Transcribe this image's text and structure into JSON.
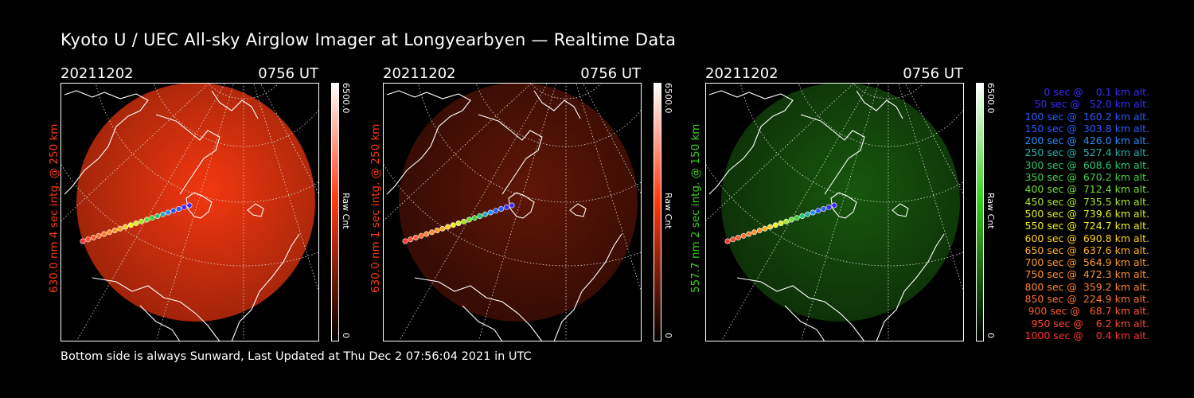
{
  "title": "Kyoto U / UEC All-sky Airglow Imager at Longyearbyen — Realtime Data",
  "footer": "Bottom side is always Sunward, Last Updated at Thu Dec  2 07:56:04 2021 in UTC",
  "panels": [
    {
      "date": "20211202",
      "time": "0756 UT",
      "side_label": "630.0 nm  4 sec intg. @ 250 km",
      "color": "#ff3a10",
      "brightness": 0.85,
      "colorbar_max": "6500.0",
      "colorbar_min": "0",
      "colorbar_label": "Raw Cnt"
    },
    {
      "date": "20211202",
      "time": "0756 UT",
      "side_label": "630.0 nm  1 sec intg. @ 250 km",
      "color": "#ff3a10",
      "brightness": 0.28,
      "colorbar_max": "6500.0",
      "colorbar_min": "0",
      "colorbar_label": "Raw Cnt"
    },
    {
      "date": "20211202",
      "time": "0756 UT",
      "side_label": "557.7 nm  2 sec intg. @ 150 km",
      "color": "#38d020",
      "brightness": 0.32,
      "colorbar_max": "6500.0",
      "colorbar_min": "0",
      "colorbar_label": "Raw Cnt"
    }
  ],
  "legend": [
    {
      "text": "0 sec @    0.1 km alt.",
      "color": "#3a2aff"
    },
    {
      "text": "50 sec @   52.0 km alt.",
      "color": "#3a2aff"
    },
    {
      "text": "100 sec @  160.2 km alt.",
      "color": "#2a5aff"
    },
    {
      "text": "150 sec @  303.8 km alt.",
      "color": "#2a5aff"
    },
    {
      "text": "200 sec @  426.0 km alt.",
      "color": "#2a8aff"
    },
    {
      "text": "250 sec @  527.4 km alt.",
      "color": "#28b0b0"
    },
    {
      "text": "300 sec @  608.6 km alt.",
      "color": "#28c870"
    },
    {
      "text": "350 sec @  670.2 km alt.",
      "color": "#40d040"
    },
    {
      "text": "400 sec @  712.4 km alt.",
      "color": "#70dc30"
    },
    {
      "text": "450 sec @  735.5 km alt.",
      "color": "#a8e828"
    },
    {
      "text": "500 sec @  739.6 km alt.",
      "color": "#d8f028"
    },
    {
      "text": "550 sec @  724.7 km alt.",
      "color": "#f0f020"
    },
    {
      "text": "600 sec @  690.8 km alt.",
      "color": "#ffd020"
    },
    {
      "text": "650 sec @  637.6 km alt.",
      "color": "#ffb020"
    },
    {
      "text": "700 sec @  564.9 km alt.",
      "color": "#ff9828"
    },
    {
      "text": "750 sec @  472.3 km alt.",
      "color": "#ff9030"
    },
    {
      "text": "800 sec @  359.2 km alt.",
      "color": "#ff8030"
    },
    {
      "text": "850 sec @  224.9 km alt.",
      "color": "#ff7030"
    },
    {
      "text": "900 sec @   68.7 km alt.",
      "color": "#ff5a30"
    },
    {
      "text": "950 sec @    6.2 km alt.",
      "color": "#ff4a30"
    },
    {
      "text": "1000 sec @    0.4 km alt.",
      "color": "#ff3030"
    }
  ]
}
